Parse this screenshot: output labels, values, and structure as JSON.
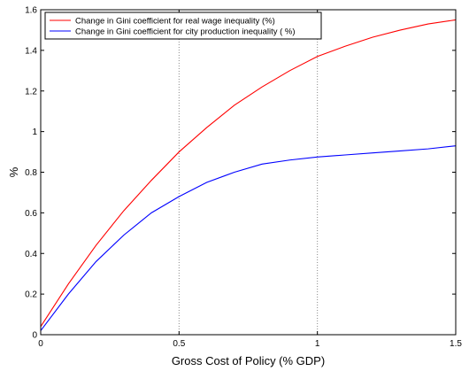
{
  "chart_data": {
    "type": "line",
    "title": "",
    "xlabel": "Gross Cost of Policy (% GDP)",
    "ylabel": "%",
    "xlim": [
      0,
      1.5
    ],
    "ylim": [
      0,
      1.6
    ],
    "x_ticks": [
      0,
      0.5,
      1,
      1.5
    ],
    "y_ticks": [
      0,
      0.2,
      0.4,
      0.6,
      0.8,
      1,
      1.2,
      1.4,
      1.6
    ],
    "x_tick_labels": [
      "0",
      "0.5",
      "1",
      "1.5"
    ],
    "y_tick_labels": [
      "0",
      "0.2",
      "0.4",
      "0.6",
      "0.8",
      "1",
      "1.2",
      "1.4",
      "1.6"
    ],
    "vertical_gridlines_at": [
      0.5,
      1
    ],
    "legend_position": "top-left",
    "series": [
      {
        "name": "Change in Gini coefficient for real wage inequality (%)",
        "color": "#ff0000",
        "x": [
          0,
          0.1,
          0.2,
          0.3,
          0.4,
          0.5,
          0.6,
          0.7,
          0.8,
          0.9,
          1.0,
          1.1,
          1.2,
          1.3,
          1.4,
          1.5
        ],
        "y": [
          0.04,
          0.25,
          0.44,
          0.61,
          0.76,
          0.9,
          1.02,
          1.13,
          1.22,
          1.3,
          1.37,
          1.42,
          1.465,
          1.5,
          1.53,
          1.55
        ]
      },
      {
        "name": "Change in Gini coefficient for city production inequality ( %)",
        "color": "#0000ff",
        "x": [
          0,
          0.1,
          0.2,
          0.3,
          0.4,
          0.5,
          0.6,
          0.7,
          0.8,
          0.9,
          1.0,
          1.1,
          1.2,
          1.3,
          1.4,
          1.5
        ],
        "y": [
          0.02,
          0.2,
          0.36,
          0.49,
          0.6,
          0.68,
          0.75,
          0.8,
          0.84,
          0.86,
          0.875,
          0.885,
          0.895,
          0.905,
          0.915,
          0.93
        ]
      }
    ]
  }
}
